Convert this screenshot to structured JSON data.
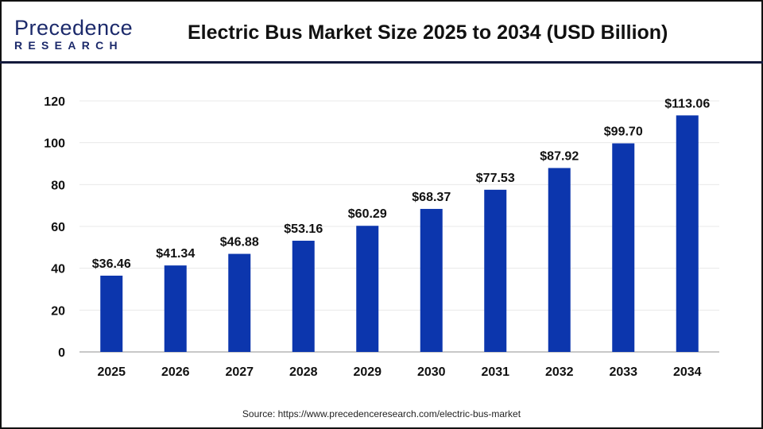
{
  "brand": {
    "logo_line1": "Precedence",
    "logo_line2": "RESEARCH"
  },
  "source": "Source: https://www.precedenceresearch.com/electric-bus-market",
  "colors": {
    "bar": "#0c36ad",
    "grid": "#e8e8e8",
    "axis": "#c8c8c8",
    "header_rule": "#141a3c"
  },
  "chart_data": {
    "type": "bar",
    "title": "Electric Bus Market Size 2025 to 2034 (USD Billion)",
    "xlabel": "",
    "ylabel": "",
    "categories": [
      "2025",
      "2026",
      "2027",
      "2028",
      "2029",
      "2030",
      "2031",
      "2032",
      "2033",
      "2034"
    ],
    "values": [
      36.46,
      41.34,
      46.88,
      53.16,
      60.29,
      68.37,
      77.53,
      87.92,
      99.7,
      113.06
    ],
    "data_labels": [
      "$36.46",
      "$41.34",
      "$46.88",
      "$53.16",
      "$60.29",
      "$68.37",
      "$77.53",
      "$87.92",
      "$99.70",
      "$113.06"
    ],
    "ylim": [
      0,
      120
    ],
    "yticks": [
      0,
      20,
      40,
      60,
      80,
      100,
      120
    ],
    "grid": true,
    "legend": "none"
  }
}
